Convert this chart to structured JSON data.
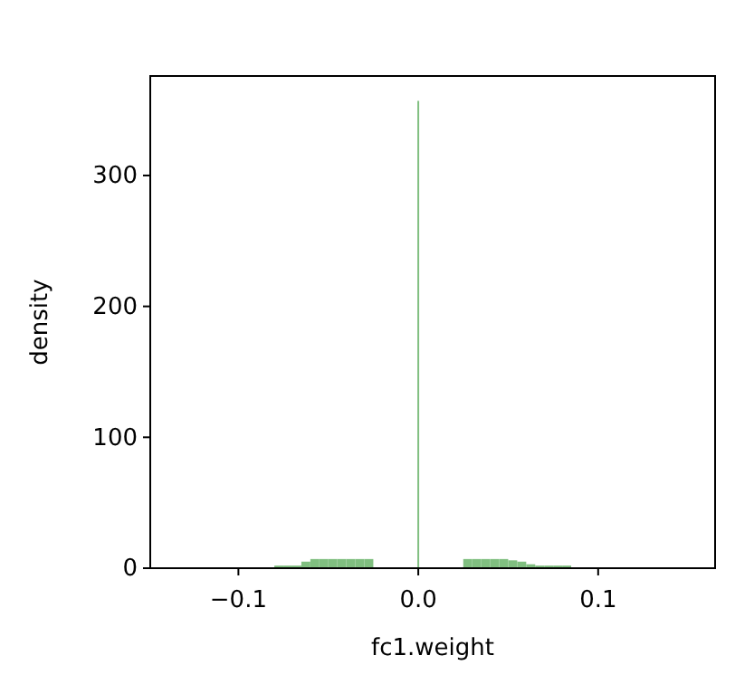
{
  "chart_data": {
    "type": "histogram",
    "xlabel": "fc1.weight",
    "ylabel": "density",
    "bins": [
      -0.08,
      -0.075,
      -0.07,
      -0.065,
      -0.06,
      -0.055,
      -0.05,
      -0.045,
      -0.04,
      -0.035,
      -0.03,
      -0.025,
      -0.0005,
      0.0005,
      0.025,
      0.03,
      0.035,
      0.04,
      0.045,
      0.05,
      0.055,
      0.06,
      0.065,
      0.07,
      0.075,
      0.08,
      0.085
    ],
    "values": [
      2,
      2,
      2,
      5,
      7,
      7,
      7,
      7,
      7,
      7,
      7,
      0,
      357,
      0,
      7,
      7,
      7,
      7,
      7,
      6,
      5,
      3,
      2,
      2,
      2,
      2
    ],
    "color": "#80bf80",
    "xlim": [
      -0.149,
      0.165
    ],
    "xticks": [
      {
        "value": -0.1,
        "label": "−0.1"
      },
      {
        "value": 0,
        "label": "0.0"
      },
      {
        "value": 0.1,
        "label": "0.1"
      }
    ],
    "ylim": [
      0,
      376
    ],
    "yticks": [
      0,
      100,
      200,
      300
    ],
    "grid": false
  }
}
